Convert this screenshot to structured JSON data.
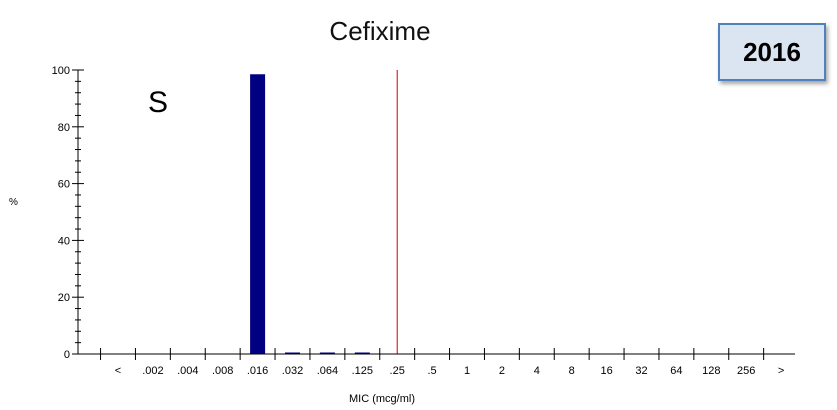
{
  "chart_data": {
    "type": "bar",
    "title": "Cefixime",
    "xlabel": "MIC (mcg/ml)",
    "ylabel": "%",
    "ylim": [
      0,
      100
    ],
    "yticks": [
      0,
      20,
      40,
      60,
      80,
      100
    ],
    "categories": [
      "<",
      ".002",
      ".004",
      ".008",
      ".016",
      ".032",
      ".064",
      ".125",
      ".25",
      ".5",
      "1",
      "2",
      "4",
      "8",
      "16",
      "32",
      "64",
      "128",
      "256",
      ">"
    ],
    "values": [
      0,
      0,
      0,
      0,
      98.5,
      0.5,
      0.5,
      0.5,
      0,
      0,
      0,
      0,
      0,
      0,
      0,
      0,
      0,
      0,
      0,
      0
    ],
    "bar_color": "#000080",
    "breakpoint": {
      "category": ".25",
      "color": "#cc0000"
    },
    "annotation": "S",
    "year": "2016"
  }
}
